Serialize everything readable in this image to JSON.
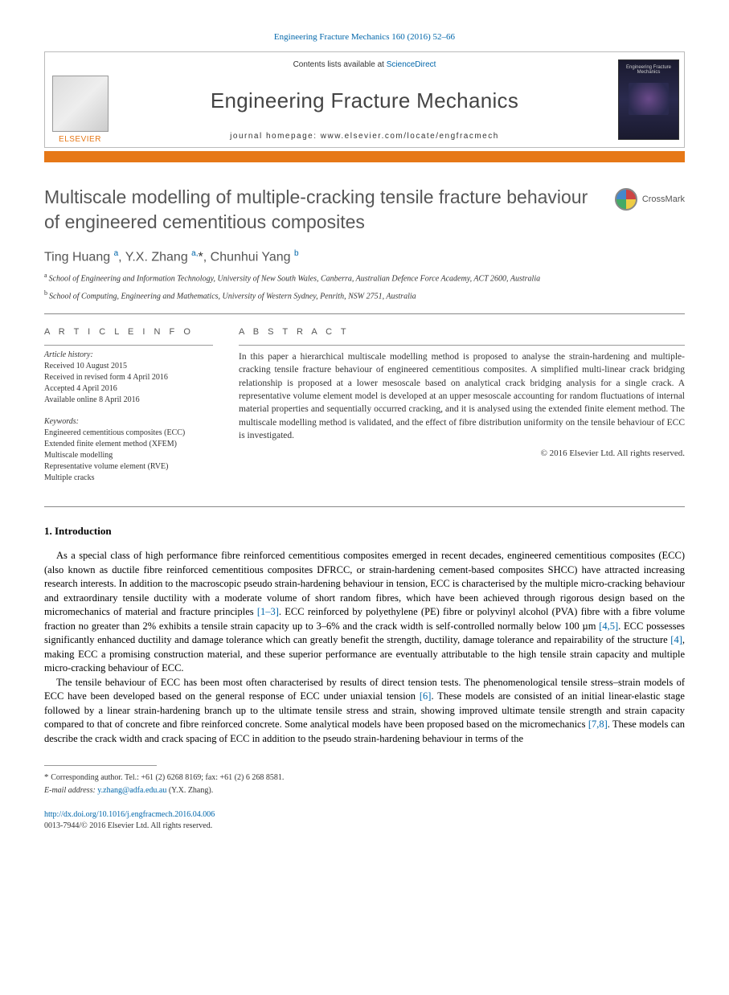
{
  "citation": "Engineering Fracture Mechanics 160 (2016) 52–66",
  "masthead": {
    "contents_prefix": "Contents lists available at ",
    "contents_link": "ScienceDirect",
    "journal_name": "Engineering Fracture Mechanics",
    "homepage_label": "journal homepage: www.elsevier.com/locate/engfracmech",
    "publisher": "ELSEVIER",
    "cover_title": "Engineering Fracture Mechanics"
  },
  "crossmark": "CrossMark",
  "title": "Multiscale modelling of multiple-cracking tensile fracture behaviour of engineered cementitious composites",
  "authors_html": "Ting Huang <sup>a</sup>, Y.X. Zhang <sup>a,</sup><span class='ast'>*</span>, Chunhui Yang <sup>b</sup>",
  "affiliations": {
    "a": "School of Engineering and Information Technology, University of New South Wales, Canberra, Australian Defence Force Academy, ACT 2600, Australia",
    "b": "School of Computing, Engineering and Mathematics, University of Western Sydney, Penrith, NSW 2751, Australia"
  },
  "info": {
    "label": "A R T I C L E   I N F O",
    "history_head": "Article history:",
    "history": [
      "Received 10 August 2015",
      "Received in revised form 4 April 2016",
      "Accepted 4 April 2016",
      "Available online 8 April 2016"
    ],
    "keywords_head": "Keywords:",
    "keywords": [
      "Engineered cementitious composites (ECC)",
      "Extended finite element method (XFEM)",
      "Multiscale modelling",
      "Representative volume element (RVE)",
      "Multiple cracks"
    ]
  },
  "abstract": {
    "label": "A B S T R A C T",
    "text": "In this paper a hierarchical multiscale modelling method is proposed to analyse the strain-hardening and multiple-cracking tensile fracture behaviour of engineered cementitious composites. A simplified multi-linear crack bridging relationship is proposed at a lower mesoscale based on analytical crack bridging analysis for a single crack. A representative volume element model is developed at an upper mesoscale accounting for random fluctuations of internal material properties and sequentially occurred cracking, and it is analysed using the extended finite element method. The multiscale modelling method is validated, and the effect of fibre distribution uniformity on the tensile behaviour of ECC is investigated.",
    "copyright": "© 2016 Elsevier Ltd. All rights reserved."
  },
  "intro": {
    "heading": "1. Introduction",
    "p1_pre": "As a special class of high performance fibre reinforced cementitious composites emerged in recent decades, engineered cementitious composites (ECC) (also known as ductile fibre reinforced cementitious composites DFRCC, or strain-hardening cement-based composites SHCC) have attracted increasing research interests. In addition to the macroscopic pseudo strain-hardening behaviour in tension, ECC is characterised by the multiple micro-cracking behaviour and extraordinary tensile ductility with a moderate volume of short random fibres, which have been achieved through rigorous design based on the micromechanics of material and fracture principles ",
    "p1_ref1": "[1–3]",
    "p1_mid1": ". ECC reinforced by polyethylene (PE) fibre or polyvinyl alcohol (PVA) fibre with a fibre volume fraction no greater than 2% exhibits a tensile strain capacity up to 3–6% and the crack width is self-controlled normally below 100 µm ",
    "p1_ref2": "[4,5]",
    "p1_mid2": ". ECC possesses significantly enhanced ductility and damage tolerance which can greatly benefit the strength, ductility, damage tolerance and repairability of the structure ",
    "p1_ref3": "[4]",
    "p1_end": ", making ECC a promising construction material, and these superior performance are eventually attributable to the high tensile strain capacity and multiple micro-cracking behaviour of ECC.",
    "p2_pre": "The tensile behaviour of ECC has been most often characterised by results of direct tension tests. The phenomenological tensile stress–strain models of ECC have been developed based on the general response of ECC under uniaxial tension ",
    "p2_ref1": "[6]",
    "p2_mid": ". These models are consisted of an initial linear-elastic stage followed by a linear strain-hardening branch up to the ultimate tensile stress and strain, showing improved ultimate tensile strength and strain capacity compared to that of concrete and fibre reinforced concrete. Some analytical models have been proposed based on the micromechanics ",
    "p2_ref2": "[7,8]",
    "p2_end": ". These models can describe the crack width and crack spacing of ECC in addition to the pseudo strain-hardening behaviour in terms of the"
  },
  "footnote": {
    "corresponding": "Corresponding author. Tel.: +61 (2) 6268 8169; fax: +61 (2) 6 268 8581.",
    "email_label": "E-mail address:",
    "email": "y.zhang@adfa.edu.au",
    "email_person": "(Y.X. Zhang)."
  },
  "footer": {
    "doi": "http://dx.doi.org/10.1016/j.engfracmech.2016.04.006",
    "issn": "0013-7944/© 2016 Elsevier Ltd. All rights reserved."
  },
  "colors": {
    "link": "#0066aa",
    "orange": "#e67817",
    "title_gray": "#575757"
  }
}
